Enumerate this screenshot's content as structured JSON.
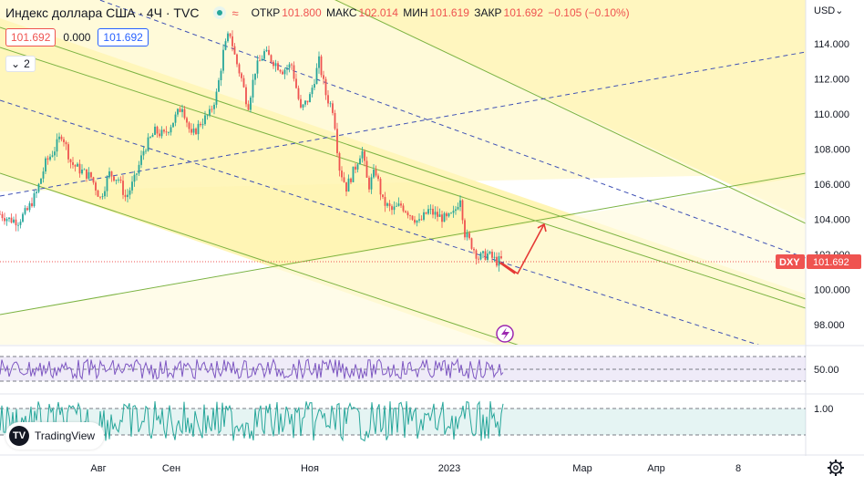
{
  "header": {
    "title": "Индекс доллара США · 4Ч · TVC",
    "open_label": "ОТКР",
    "open": "101.800",
    "high_label": "МАКС",
    "high": "102.014",
    "low_label": "МИН",
    "low": "101.619",
    "close_label": "ЗАКР",
    "close": "101.692",
    "change": "−0.105 (−0.10%)"
  },
  "price_boxes": {
    "sell": "101.692",
    "spread": "0.000",
    "buy": "101.692"
  },
  "indicators_toggle": {
    "count": "2"
  },
  "currency": "USD",
  "price_tag": {
    "symbol": "DXY",
    "value": "101.692"
  },
  "logo": {
    "text": "TradingView"
  },
  "colors": {
    "up": "#26a69a",
    "down": "#ef5350",
    "channel": "#fff9c4",
    "channel_line": "#7cb342",
    "median": "#3f51b5",
    "arrow": "#e53935",
    "osc1": "#7e57c2",
    "osc2": "#26a69a"
  },
  "chart_data": {
    "type": "candlestick",
    "y_ticks": [
      "114.000",
      "112.000",
      "110.000",
      "108.000",
      "106.000",
      "104.000",
      "102.000",
      "100.000",
      "98.000"
    ],
    "ylim": [
      97.7,
      115.5
    ],
    "x_ticks": [
      "Авг",
      "Сен",
      "Ноя",
      "2023",
      "Мар",
      "Апр",
      "8"
    ],
    "price_path": [
      [
        0,
        104.3
      ],
      [
        10,
        104.0
      ],
      [
        20,
        103.9
      ],
      [
        30,
        104.5
      ],
      [
        40,
        105.5
      ],
      [
        50,
        107.2
      ],
      [
        60,
        108.0
      ],
      [
        68,
        108.9
      ],
      [
        78,
        107.2
      ],
      [
        88,
        106.8
      ],
      [
        100,
        106.4
      ],
      [
        110,
        105.2
      ],
      [
        120,
        106.6
      ],
      [
        130,
        106.3
      ],
      [
        138,
        105.2
      ],
      [
        148,
        106.3
      ],
      [
        158,
        108.0
      ],
      [
        170,
        109.0
      ],
      [
        180,
        108.8
      ],
      [
        190,
        109.6
      ],
      [
        200,
        110.5
      ],
      [
        210,
        108.7
      ],
      [
        220,
        109.5
      ],
      [
        230,
        110.0
      ],
      [
        238,
        111.2
      ],
      [
        245,
        113.5
      ],
      [
        252,
        114.7
      ],
      [
        258,
        113.2
      ],
      [
        265,
        112.0
      ],
      [
        272,
        110.4
      ],
      [
        280,
        112.5
      ],
      [
        290,
        113.5
      ],
      [
        300,
        113.0
      ],
      [
        310,
        112.5
      ],
      [
        320,
        112.8
      ],
      [
        330,
        110.2
      ],
      [
        340,
        111.0
      ],
      [
        350,
        113.0
      ],
      [
        358,
        111.0
      ],
      [
        366,
        110.2
      ],
      [
        372,
        107.0
      ],
      [
        380,
        105.8
      ],
      [
        390,
        107.0
      ],
      [
        397,
        108.0
      ],
      [
        404,
        105.8
      ],
      [
        412,
        106.8
      ],
      [
        420,
        105.0
      ],
      [
        430,
        104.5
      ],
      [
        440,
        104.8
      ],
      [
        450,
        104.3
      ],
      [
        460,
        103.8
      ],
      [
        470,
        104.5
      ],
      [
        480,
        104.2
      ],
      [
        490,
        104.0
      ],
      [
        498,
        104.3
      ],
      [
        505,
        105.3
      ],
      [
        510,
        103.2
      ],
      [
        518,
        102.5
      ],
      [
        525,
        101.8
      ],
      [
        535,
        102.0
      ],
      [
        545,
        101.6
      ],
      [
        552,
        101.7
      ]
    ],
    "oscillators": [
      {
        "name": "osc1",
        "levels": [
          "50.00"
        ]
      },
      {
        "name": "osc2",
        "levels": [
          "1.00"
        ]
      }
    ]
  }
}
